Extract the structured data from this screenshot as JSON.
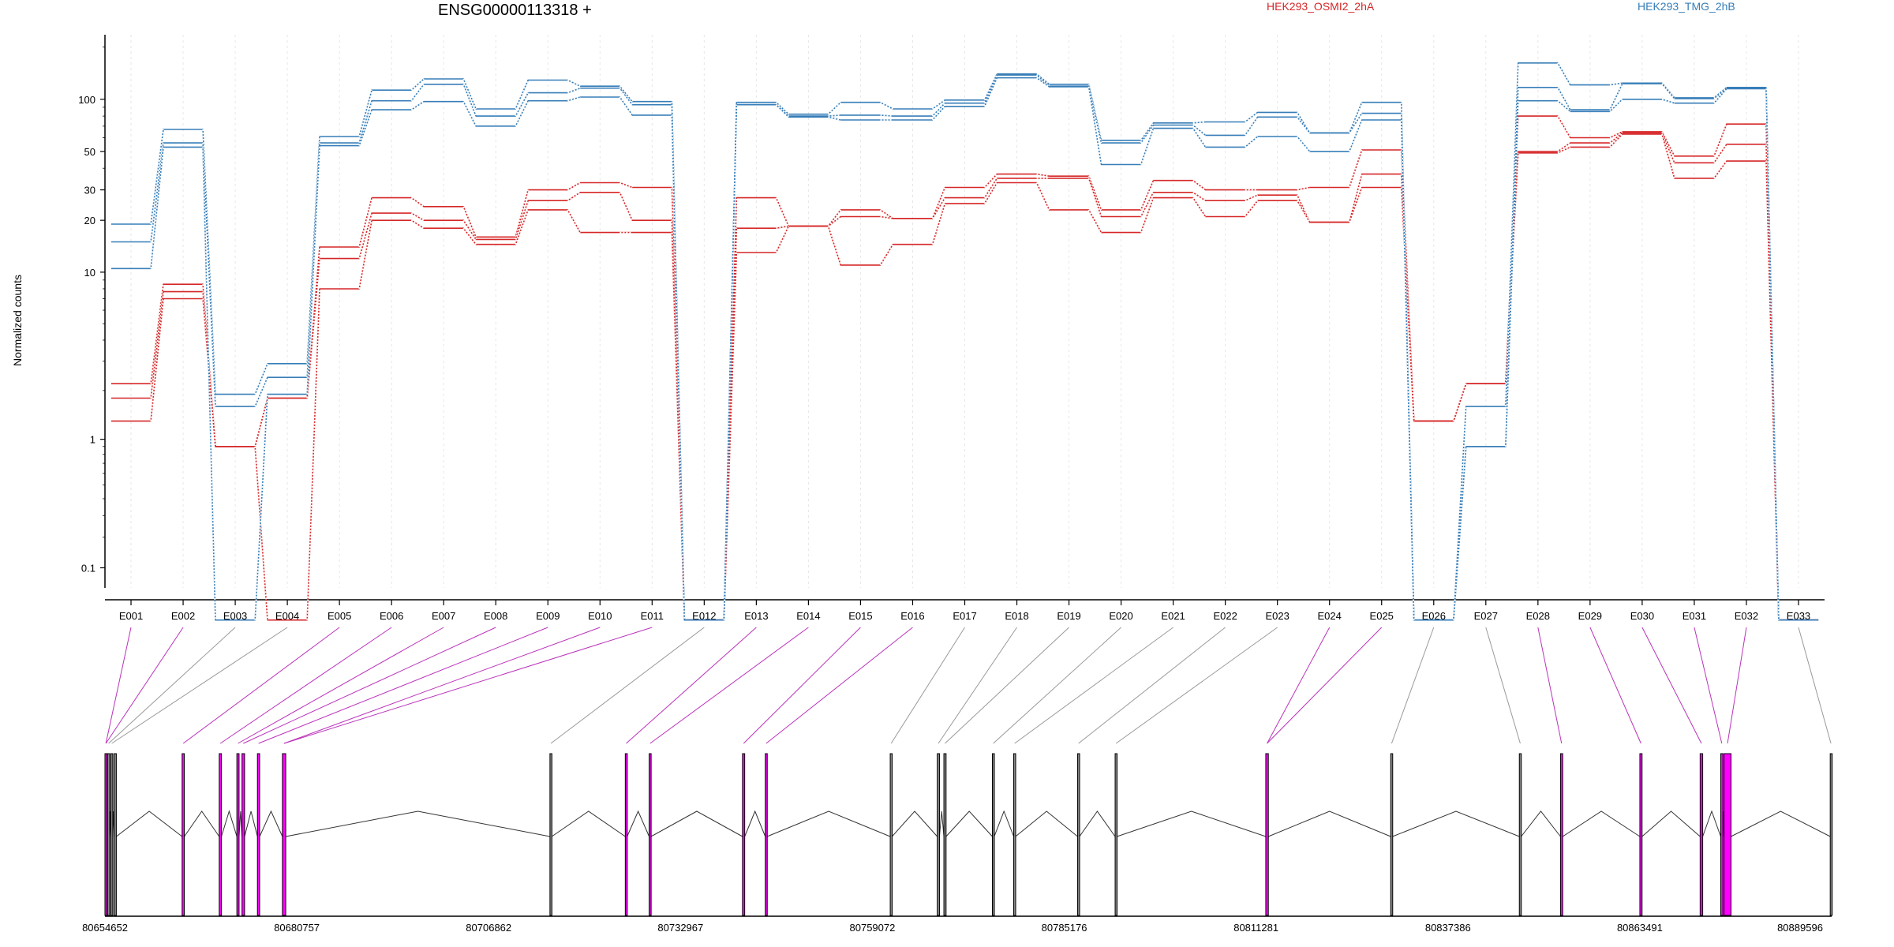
{
  "title": "ENSG00000113318 +",
  "ylabel": "Normalized counts",
  "legend": [
    {
      "name": "HEK293_OSMI2_2hA",
      "color": "#d62728"
    },
    {
      "name": "HEK293_TMG_2hB",
      "color": "#377eb8"
    }
  ],
  "chart_data": {
    "type": "line",
    "title": "ENSG00000113318 +",
    "ylabel": "Normalized counts",
    "yscale": "log10(x+0.1)",
    "yticks": [
      0.1,
      1,
      10,
      20,
      30,
      50,
      100
    ],
    "ylim": [
      0.07,
      210
    ],
    "grid": "vertical dotted",
    "legend": "top",
    "categories": [
      "E001",
      "E002",
      "E003",
      "E004",
      "E005",
      "E006",
      "E007",
      "E008",
      "E009",
      "E010",
      "E011",
      "E012",
      "E013",
      "E014",
      "E015",
      "E016",
      "E017",
      "E018",
      "E019",
      "E020",
      "E021",
      "E022",
      "E023",
      "E024",
      "E025",
      "E026",
      "E027",
      "E028",
      "E029",
      "E030",
      "E031",
      "E032",
      "E033"
    ],
    "series": [
      {
        "group": "HEK293_OSMI2_2hA",
        "color": "#d62728",
        "values": [
          2.2,
          8.5,
          0.9,
          1.8,
          14,
          27,
          24,
          16,
          30,
          33,
          31,
          0,
          27,
          18.5,
          23,
          20.5,
          31,
          37,
          36,
          23,
          34,
          30,
          30,
          31,
          51,
          1.3,
          2.2,
          80,
          60,
          65,
          47,
          72,
          0
        ]
      },
      {
        "group": "HEK293_OSMI2_2hA",
        "color": "#d62728",
        "values": [
          1.8,
          7.7,
          0.9,
          1.8,
          12,
          22,
          20,
          15.5,
          26,
          29,
          20,
          0,
          18,
          18.5,
          21,
          20.5,
          27,
          35,
          35,
          21,
          29,
          26,
          28,
          19.5,
          37,
          1.3,
          2.2,
          50,
          56,
          64,
          43,
          55,
          0
        ]
      },
      {
        "group": "HEK293_OSMI2_2hA",
        "color": "#d62728",
        "values": [
          1.3,
          7.0,
          0.9,
          0,
          8,
          20,
          18,
          14.5,
          23,
          17,
          17,
          0,
          13,
          18.5,
          11,
          14.5,
          25,
          33,
          23,
          17,
          27,
          21,
          26,
          19.5,
          31,
          1.3,
          2.2,
          49,
          53,
          63,
          35,
          44,
          0
        ]
      },
      {
        "group": "HEK293_TMG_2hB",
        "color": "#377eb8",
        "values": [
          19,
          67,
          1.9,
          2.9,
          61,
          113,
          131,
          88,
          129,
          119,
          97,
          0,
          96,
          82,
          96,
          88,
          99,
          140,
          122,
          58,
          73,
          74,
          84,
          64,
          96,
          0,
          1.6,
          162,
          121,
          124,
          102,
          117,
          0
        ]
      },
      {
        "group": "HEK293_TMG_2hB",
        "color": "#377eb8",
        "values": [
          15,
          56,
          1.6,
          2.4,
          56,
          98,
          122,
          80,
          109,
          116,
          93,
          0,
          93,
          80,
          81,
          80,
          95,
          138,
          119,
          56,
          71,
          62,
          79,
          64,
          83,
          0,
          0.9,
          117,
          87,
          123,
          101,
          116,
          0
        ]
      },
      {
        "group": "HEK293_TMG_2hB",
        "color": "#377eb8",
        "values": [
          10.5,
          53,
          0,
          1.9,
          54,
          87,
          97,
          70,
          98,
          103,
          81,
          0,
          93,
          79,
          76,
          76,
          91,
          133,
          118,
          42,
          68,
          53,
          61,
          50,
          76,
          0,
          0.9,
          98,
          85,
          100,
          95,
          115,
          0
        ]
      }
    ],
    "xticks_genomic": [
      "80654652",
      "80680757",
      "80706862",
      "80732967",
      "80759072",
      "80785176",
      "80811281",
      "80837386",
      "80863491",
      "80889596"
    ],
    "exons": [
      {
        "start": 80654652,
        "end": 80654900,
        "color": "magenta"
      },
      {
        "start": 80655000,
        "end": 80655300,
        "color": "gray"
      },
      {
        "start": 80655450,
        "end": 80655700,
        "color": "gray"
      },
      {
        "start": 80655900,
        "end": 80656200,
        "color": "gray"
      },
      {
        "start": 80665150,
        "end": 80665450,
        "color": "magenta"
      },
      {
        "start": 80670200,
        "end": 80670500,
        "color": "magenta"
      },
      {
        "start": 80672600,
        "end": 80672900,
        "color": "magenta"
      },
      {
        "start": 80673300,
        "end": 80673650,
        "color": "magenta"
      },
      {
        "start": 80675400,
        "end": 80675700,
        "color": "magenta"
      },
      {
        "start": 80678800,
        "end": 80679250,
        "color": "magenta"
      },
      {
        "start": 80715200,
        "end": 80715450,
        "color": "gray"
      },
      {
        "start": 80725450,
        "end": 80725700,
        "color": "magenta"
      },
      {
        "start": 80728700,
        "end": 80728950,
        "color": "magenta"
      },
      {
        "start": 80741400,
        "end": 80741700,
        "color": "magenta"
      },
      {
        "start": 80744500,
        "end": 80744750,
        "color": "magenta"
      },
      {
        "start": 80761500,
        "end": 80761750,
        "color": "gray"
      },
      {
        "start": 80767900,
        "end": 80768200,
        "color": "gray"
      },
      {
        "start": 80768800,
        "end": 80769100,
        "color": "gray"
      },
      {
        "start": 80775400,
        "end": 80775650,
        "color": "gray"
      },
      {
        "start": 80778300,
        "end": 80778550,
        "color": "gray"
      },
      {
        "start": 80787000,
        "end": 80787250,
        "color": "gray"
      },
      {
        "start": 80792100,
        "end": 80792350,
        "color": "gray"
      },
      {
        "start": 80812600,
        "end": 80812950,
        "color": "magenta"
      },
      {
        "start": 80829600,
        "end": 80829850,
        "color": "gray"
      },
      {
        "start": 80847100,
        "end": 80847350,
        "color": "gray"
      },
      {
        "start": 80852700,
        "end": 80853000,
        "color": "magenta"
      },
      {
        "start": 80863500,
        "end": 80863800,
        "color": "magenta"
      },
      {
        "start": 80871700,
        "end": 80872050,
        "color": "magenta"
      },
      {
        "start": 80874500,
        "end": 80874800,
        "color": "magenta"
      },
      {
        "start": 80874950,
        "end": 80875900,
        "color": "magenta"
      },
      {
        "start": 80889400,
        "end": 80889596,
        "color": "gray"
      }
    ],
    "exon_map": [
      0,
      0,
      1,
      2,
      4,
      5,
      6,
      7,
      8,
      9,
      9,
      10,
      11,
      12,
      13,
      14,
      15,
      16,
      17,
      18,
      19,
      20,
      21,
      22,
      22,
      23,
      24,
      25,
      26,
      27,
      28,
      29,
      30
    ]
  }
}
